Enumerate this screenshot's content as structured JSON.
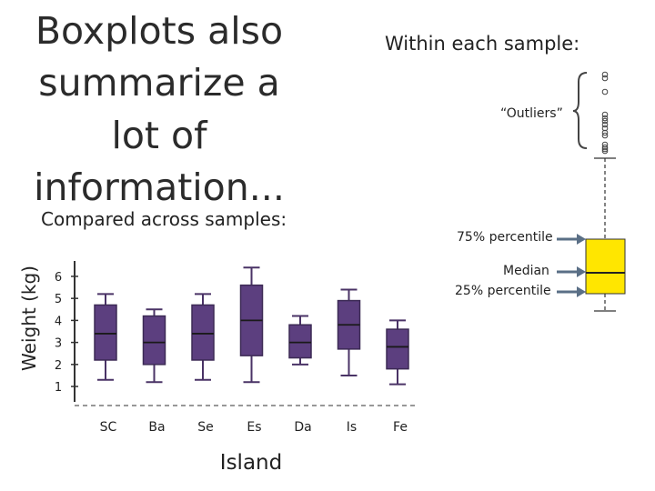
{
  "slide": {
    "title": "Boxplots also summarize a lot of information...",
    "within_label": "Within each sample:",
    "compared_label": "Compared across samples:"
  },
  "legend_box": {
    "outliers_label": "“Outliers”",
    "p75_label": "75% percentile",
    "median_label": "Median",
    "p25_label": "25% percentile",
    "box_color": "#ffe600",
    "outlier_count": 14
  },
  "chart_data": {
    "type": "box",
    "ylabel": "Weight (kg)",
    "xlabel": "Island",
    "yticks": [
      1,
      2,
      3,
      4,
      5,
      6
    ],
    "ylim": [
      0.3,
      6.7
    ],
    "box_color": "#5c3f7f",
    "categories": [
      "SC",
      "Ba",
      "Se",
      "Es",
      "Da",
      "Is",
      "Fe"
    ],
    "boxes": [
      {
        "min": 1.3,
        "q1": 2.2,
        "median": 3.4,
        "q3": 4.7,
        "max": 5.2
      },
      {
        "min": 1.2,
        "q1": 2.0,
        "median": 3.0,
        "q3": 4.2,
        "max": 4.5
      },
      {
        "min": 1.3,
        "q1": 2.2,
        "median": 3.4,
        "q3": 4.7,
        "max": 5.2
      },
      {
        "min": 1.2,
        "q1": 2.4,
        "median": 4.0,
        "q3": 5.6,
        "max": 6.4
      },
      {
        "min": 2.0,
        "q1": 2.3,
        "median": 3.0,
        "q3": 3.8,
        "max": 4.2
      },
      {
        "min": 1.5,
        "q1": 2.7,
        "median": 3.8,
        "q3": 4.9,
        "max": 5.4
      },
      {
        "min": 1.1,
        "q1": 1.8,
        "median": 2.8,
        "q3": 3.6,
        "max": 4.0
      }
    ]
  }
}
